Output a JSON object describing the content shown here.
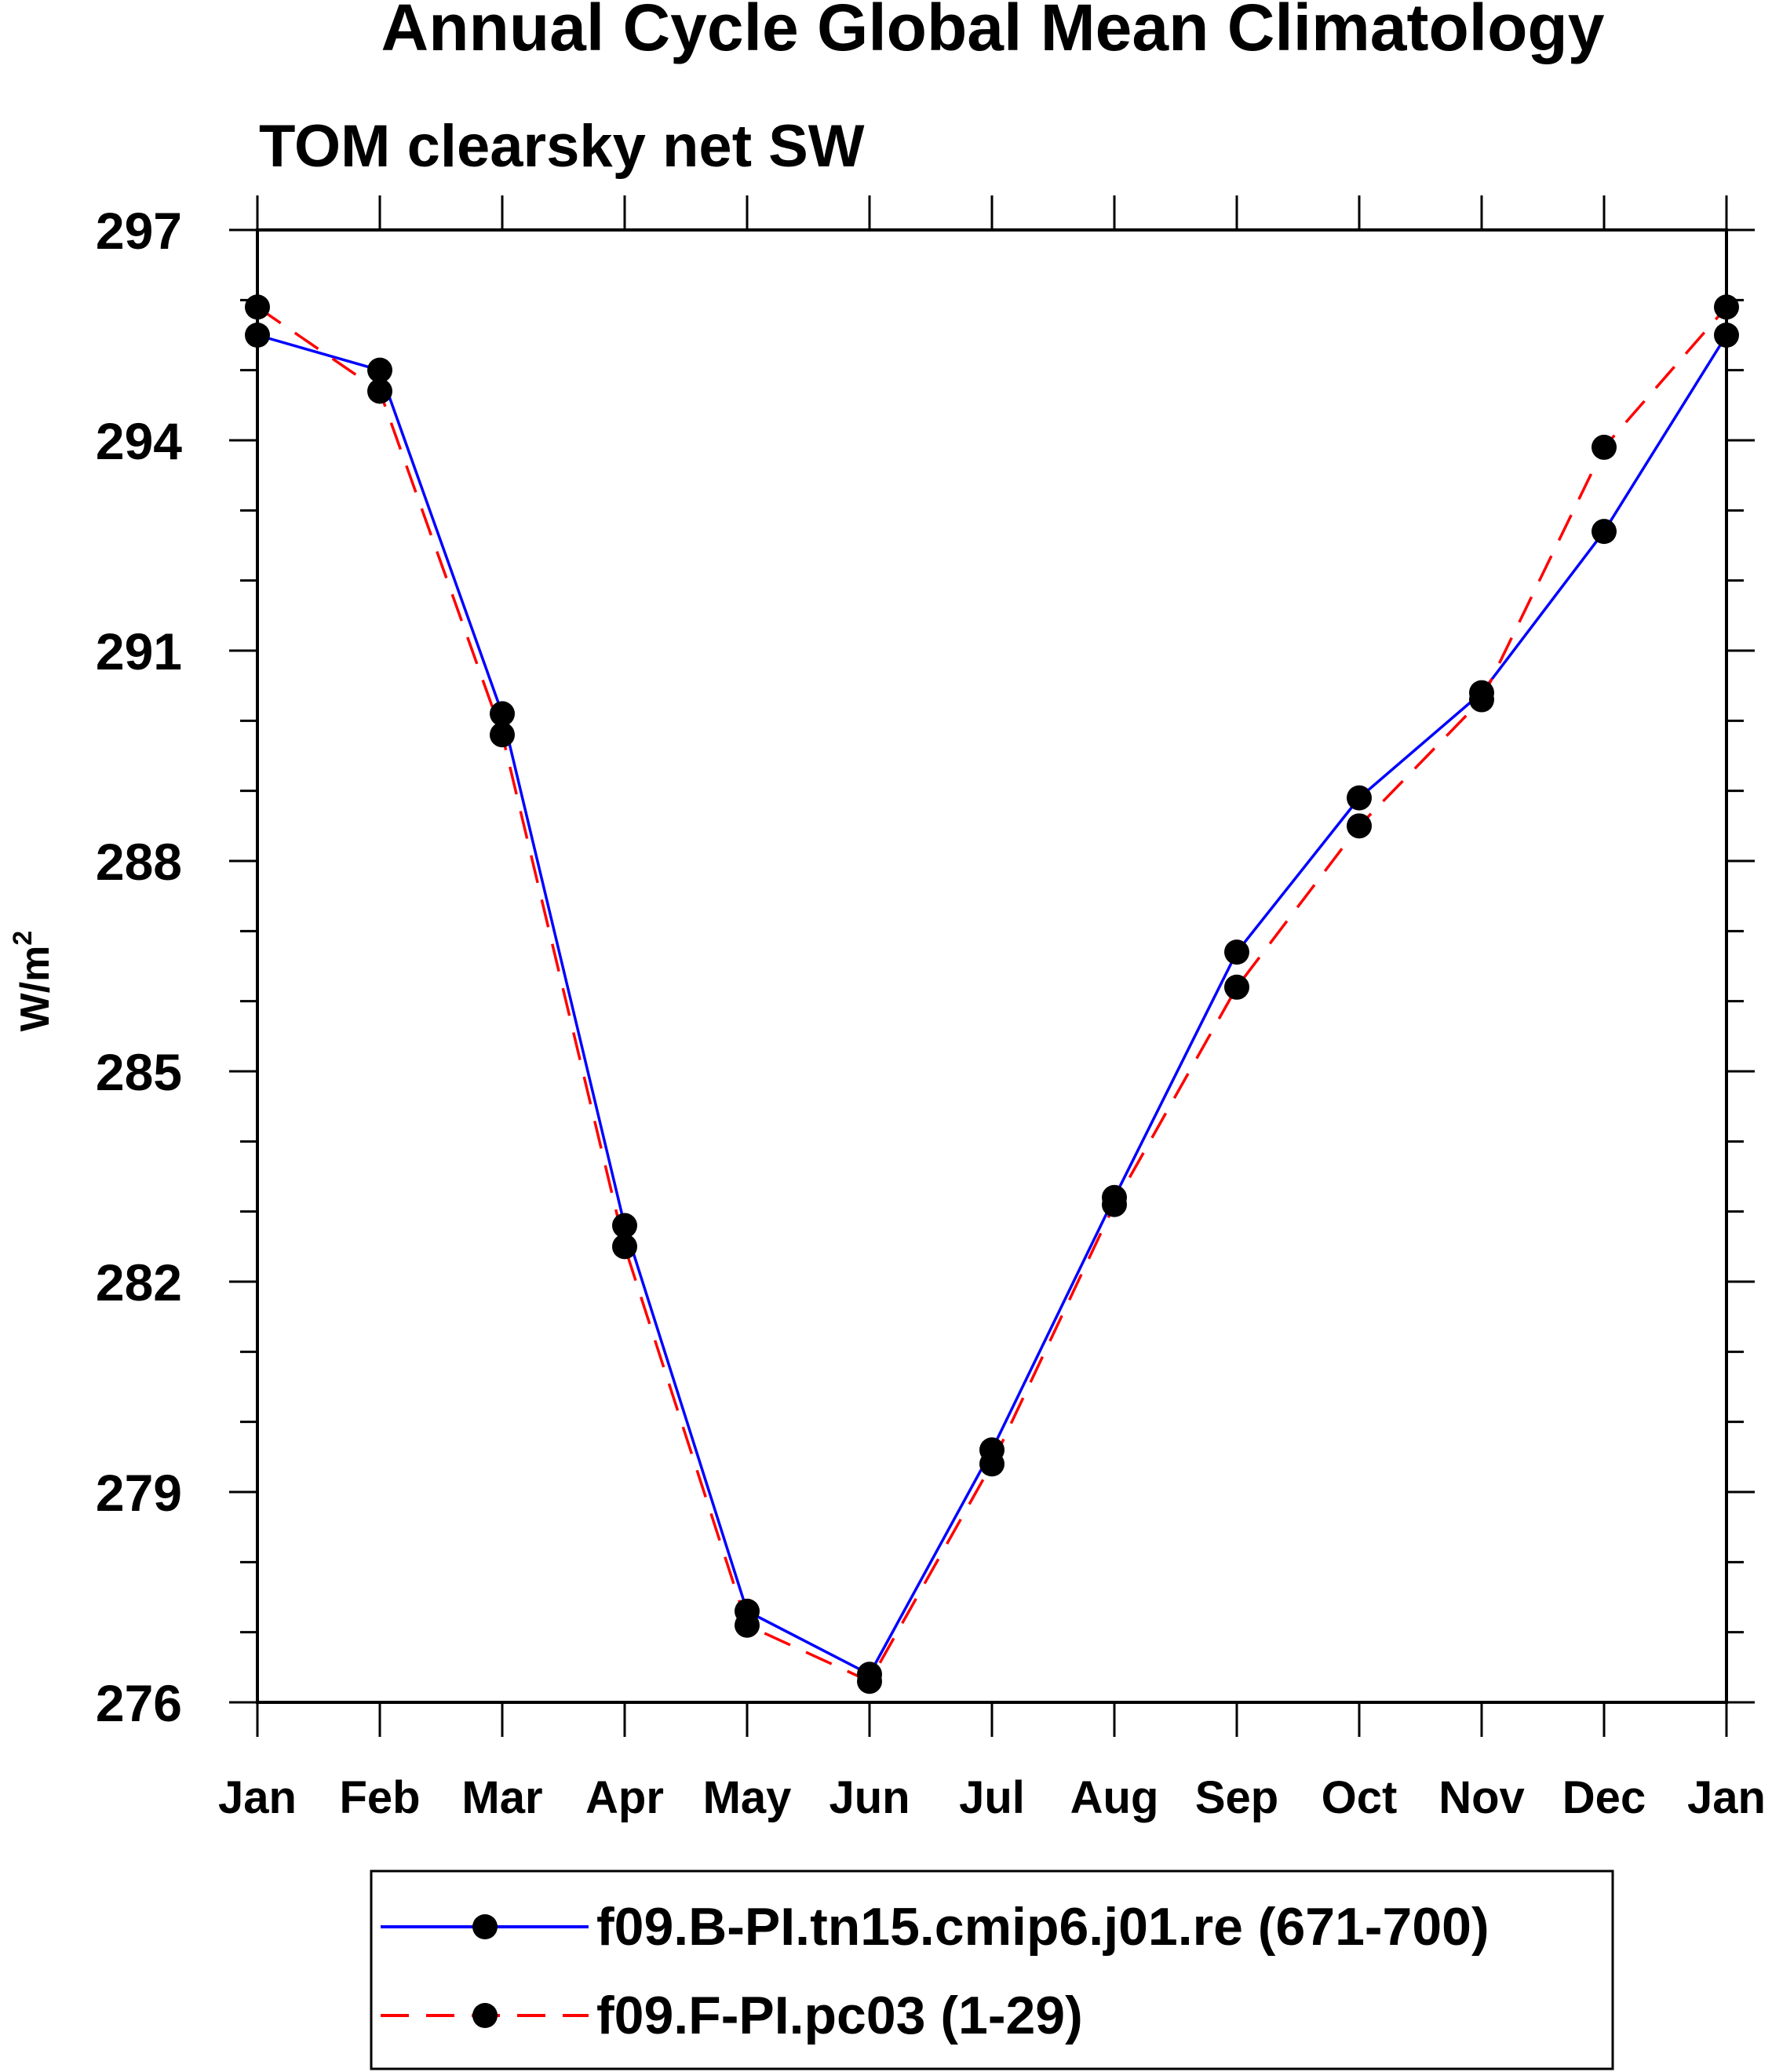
{
  "chart_data": {
    "type": "line",
    "title": "Annual Cycle Global Mean Climatology",
    "subtitle": "TOM clearsky net SW",
    "ylabel": "W/m",
    "ylabel_sup": "2",
    "xlabel": "",
    "categories": [
      "Jan",
      "Feb",
      "Mar",
      "Apr",
      "May",
      "Jun",
      "Jul",
      "Aug",
      "Sep",
      "Oct",
      "Nov",
      "Dec",
      "Jan"
    ],
    "ylim": [
      276,
      297
    ],
    "yticks": [
      "276",
      "279",
      "282",
      "285",
      "288",
      "291",
      "294",
      "297"
    ],
    "series": [
      {
        "name": "f09.B-PI.tn15.cmip6.j01.re (671-700)",
        "color": "#0000ff",
        "dash": "solid",
        "values": [
          295.5,
          295.0,
          290.1,
          282.8,
          277.3,
          276.4,
          279.6,
          283.2,
          286.7,
          288.9,
          290.4,
          292.7,
          295.5
        ]
      },
      {
        "name": "f09.F-PI.pc03 (1-29)",
        "color": "#ff0000",
        "dash": "dashed",
        "values": [
          295.9,
          294.7,
          289.8,
          282.5,
          277.1,
          276.3,
          279.4,
          283.1,
          286.2,
          288.5,
          290.3,
          293.9,
          295.9
        ]
      }
    ],
    "legend_position": "bottom"
  }
}
